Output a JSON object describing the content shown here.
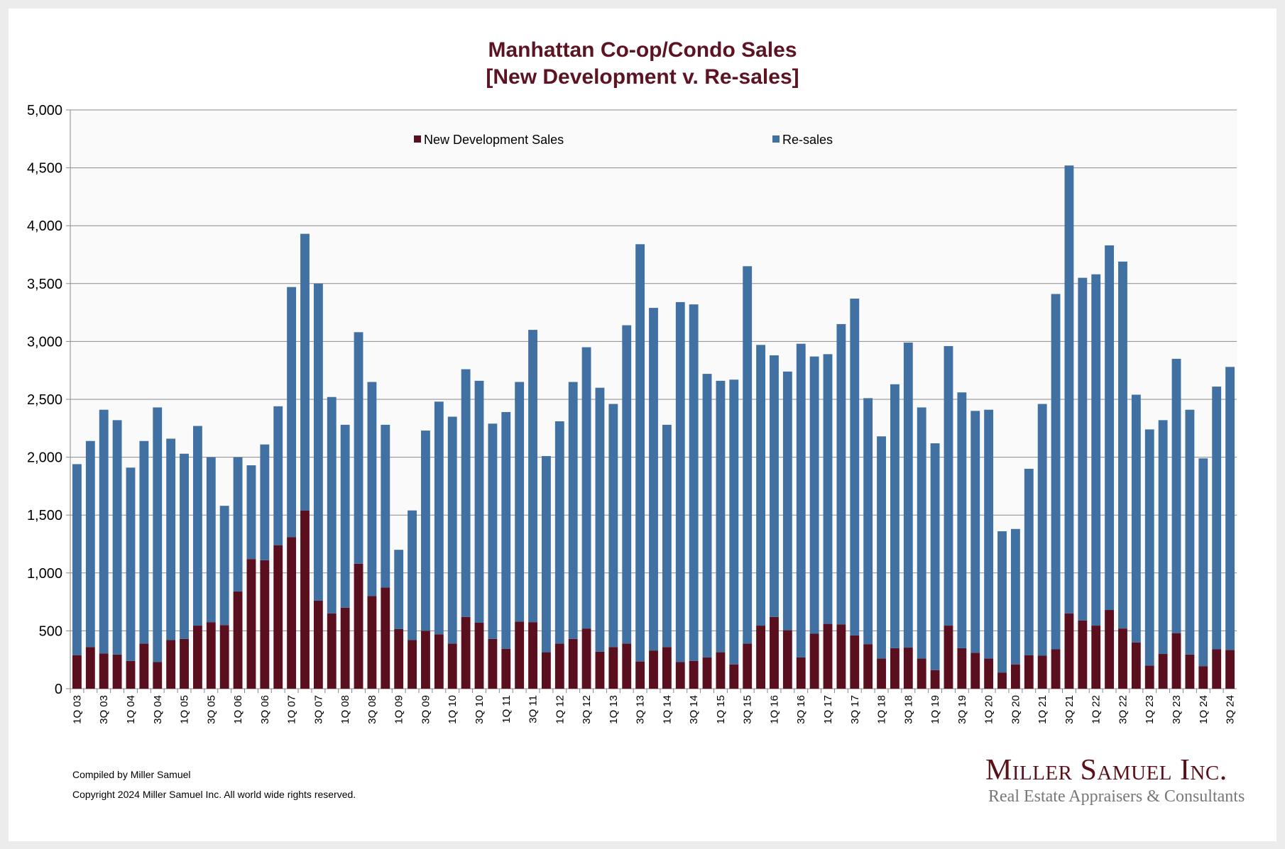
{
  "chart_data": {
    "type": "bar",
    "stacked": true,
    "title": [
      "Manhattan Co-op/Condo Sales",
      "[New Development v. Re-sales]"
    ],
    "xlabel": "",
    "ylabel": "",
    "ylim": [
      0,
      5000
    ],
    "y_ticks": [
      "0",
      "500",
      "1,000",
      "1,500",
      "2,000",
      "2,500",
      "3,000",
      "3,500",
      "4,000",
      "4,500",
      "5,000"
    ],
    "grid": true,
    "legend_position": "top",
    "x_tick_labels": [
      "1Q 03",
      "3Q 03",
      "1Q 04",
      "3Q 04",
      "1Q 05",
      "3Q 05",
      "1Q 06",
      "3Q 06",
      "1Q 07",
      "3Q 07",
      "1Q 08",
      "3Q 08",
      "1Q 09",
      "3Q 09",
      "1Q 10",
      "3Q 10",
      "1Q 11",
      "3Q 11",
      "1Q 12",
      "3Q 12",
      "1Q 13",
      "3Q 13",
      "1Q 14",
      "3Q 14",
      "1Q 15",
      "3Q 15",
      "1Q 16",
      "3Q 16",
      "1Q 17",
      "3Q 17",
      "1Q 18",
      "3Q 18",
      "1Q 19",
      "3Q 19",
      "1Q 20",
      "3Q 20",
      "1Q 21",
      "3Q 21",
      "1Q 22",
      "3Q 22",
      "1Q 23",
      "3Q 23",
      "1Q 24",
      "3Q 24"
    ],
    "series": [
      {
        "name": "New Development Sales",
        "color": "#5a0f1e",
        "values": [
          290,
          360,
          305,
          295,
          240,
          390,
          230,
          420,
          430,
          545,
          575,
          550,
          840,
          1120,
          1110,
          1240,
          1310,
          1540,
          760,
          650,
          700,
          1080,
          800,
          875,
          515,
          420,
          500,
          470,
          390,
          620,
          570,
          430,
          345,
          580,
          575,
          315,
          390,
          430,
          520,
          320,
          360,
          390,
          235,
          330,
          360,
          230,
          240,
          270,
          315,
          210,
          390,
          545,
          620,
          505,
          270,
          475,
          560,
          555,
          460,
          385,
          260,
          350,
          355,
          260,
          160,
          545,
          350,
          310,
          260,
          140,
          210,
          290,
          285,
          340,
          650,
          590,
          545,
          680,
          520,
          400,
          200,
          300,
          480,
          295,
          195,
          340,
          335
        ]
      },
      {
        "name": "Re-sales",
        "color": "#4170a3",
        "values": [
          1650,
          1780,
          2105,
          2025,
          1670,
          1750,
          2200,
          1740,
          1600,
          1725,
          1425,
          1030,
          1160,
          810,
          1000,
          1200,
          2160,
          2390,
          2740,
          1870,
          1580,
          2000,
          1850,
          1405,
          685,
          1120,
          1730,
          2010,
          1960,
          2140,
          2090,
          1860,
          2045,
          2070,
          2525,
          1695,
          1920,
          2220,
          2430,
          2280,
          2100,
          2750,
          3605,
          2960,
          1920,
          3110,
          3080,
          2450,
          2345,
          2460,
          3260,
          2425,
          2260,
          2235,
          2710,
          2395,
          2330,
          2595,
          2910,
          2125,
          1920,
          2280,
          2635,
          2170,
          1960,
          2415,
          2210,
          2090,
          2150,
          1220,
          1170,
          1610,
          2175,
          3070,
          3870,
          2960,
          3035,
          3150,
          3170,
          2140,
          2040,
          2020,
          2370,
          2115,
          1795,
          2270,
          2445
        ]
      }
    ]
  },
  "footer": {
    "compiled": "Compiled by Miller Samuel",
    "copyright": "Copyright 2024 Miller Samuel Inc.  All world wide rights reserved."
  },
  "logo": {
    "name": "Miller Samuel Inc.",
    "tagline": "Real Estate Appraisers & Consultants"
  }
}
